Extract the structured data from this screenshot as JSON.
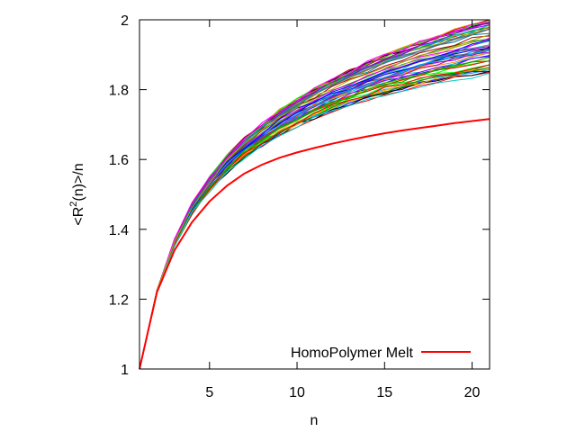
{
  "chart_data": {
    "type": "line",
    "title": "",
    "xlabel": "n",
    "ylabel_prefix": "<R",
    "ylabel_sup": "2",
    "ylabel_suffix": "(n)>/n",
    "xlim": [
      1,
      21
    ],
    "ylim": [
      1,
      2
    ],
    "xticks": [
      5,
      10,
      15,
      20
    ],
    "yticks": [
      1,
      1.2,
      1.4,
      1.6,
      1.8,
      2
    ],
    "ytick_labels": [
      "1",
      "1.2",
      "1.4",
      "1.6",
      "1.8",
      "2"
    ],
    "xtick_labels": [
      "5",
      "10",
      "15",
      "20"
    ],
    "grid": false,
    "legend": {
      "position": "bottom-right",
      "entries": [
        {
          "label": "HomoPolymer Melt",
          "color": "#ff0000"
        }
      ]
    },
    "series": [
      {
        "name": "HomoPolymer Melt",
        "color": "#ff0000",
        "x": [
          1,
          2,
          3,
          4,
          5,
          6,
          7,
          8,
          9,
          10,
          11,
          12,
          13,
          14,
          15,
          16,
          17,
          18,
          19,
          20,
          21
        ],
        "values": [
          1.0,
          1.22,
          1.34,
          1.42,
          1.48,
          1.525,
          1.56,
          1.585,
          1.605,
          1.62,
          1.633,
          1.645,
          1.656,
          1.666,
          1.675,
          1.683,
          1.69,
          1.697,
          1.704,
          1.71,
          1.716
        ]
      }
    ],
    "ensemble": {
      "count": 60,
      "x": [
        1,
        2,
        3,
        4,
        5,
        6,
        7,
        8,
        9,
        10,
        11,
        12,
        13,
        14,
        15,
        16,
        17,
        18,
        19,
        20,
        21
      ],
      "base_values": [
        1.0,
        1.225,
        1.36,
        1.455,
        1.525,
        1.58,
        1.625,
        1.662,
        1.695,
        1.723,
        1.748,
        1.77,
        1.79,
        1.808,
        1.825,
        1.84,
        1.854,
        1.867,
        1.879,
        1.89,
        1.9
      ],
      "spread_at_end": [
        -0.06,
        0.1
      ],
      "colors": [
        "#ff0000",
        "#00aa00",
        "#0000ff",
        "#ff00ff",
        "#00cccc",
        "#aaaa00",
        "#000000",
        "#ff8800",
        "#888888",
        "#8800ff",
        "#00ff00",
        "#aa0000",
        "#00aaff",
        "#ffaa00",
        "#aa00aa",
        "#008800",
        "#0088aa",
        "#666666"
      ]
    }
  }
}
